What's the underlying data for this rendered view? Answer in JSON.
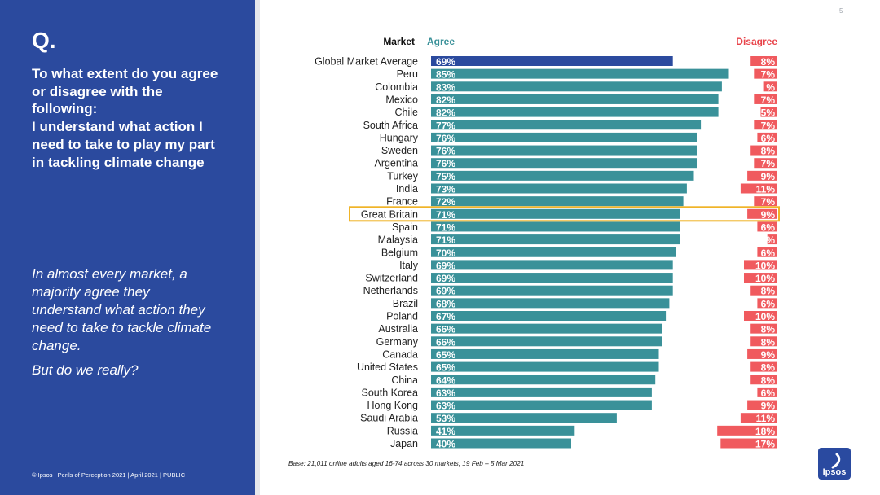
{
  "page": {
    "number": "5",
    "q_mark": "Q.",
    "question_lines": [
      "To what extent do you agree",
      "or disagree with the",
      "following:",
      "I understand what action I",
      "need to take to play my part",
      "in tackling climate change"
    ],
    "insight_lines": [
      "In almost every market, a",
      "majority agree they",
      "understand what action they",
      "need to take to tackle climate",
      "change."
    ],
    "insight_closing": "But do we really?",
    "footer": "© Ipsos | Perils of Perception 2021 | April 2021 | PUBLIC",
    "base_note": "Base: 21,011 online adults aged 16-74 across 30 markets,  19 Feb – 5 Mar 2021",
    "logo_text": "Ipsos"
  },
  "colors": {
    "panel": "#2b4a9e",
    "agree": "#3a9199",
    "agree_highlight": "#2b4a9e",
    "disagree": "#f05a5e",
    "highlight_box": "#f0b428",
    "agree_label": "#3a9199",
    "disagree_label": "#e8434a"
  },
  "chart_data": {
    "type": "bar",
    "orientation": "horizontal",
    "category_header": "Market",
    "categories": [
      "Global Market Average",
      "Peru",
      "Colombia",
      "Mexico",
      "Chile",
      "South Africa",
      "Hungary",
      "Sweden",
      "Argentina",
      "Turkey",
      "India",
      "France",
      "Great Britain",
      "Spain",
      "Malaysia",
      "Belgium",
      "Italy",
      "Switzerland",
      "Netherlands",
      "Brazil",
      "Poland",
      "Australia",
      "Germany",
      "Canada",
      "United States",
      "China",
      "South Korea",
      "Hong Kong",
      "Saudi Arabia",
      "Russia",
      "Japan"
    ],
    "series": [
      {
        "name": "Agree",
        "values": [
          69,
          85,
          83,
          82,
          82,
          77,
          76,
          76,
          76,
          75,
          73,
          72,
          71,
          71,
          71,
          70,
          69,
          69,
          69,
          68,
          67,
          66,
          66,
          65,
          65,
          64,
          63,
          63,
          53,
          41,
          40
        ],
        "labels": [
          "69%",
          "85%",
          "83%",
          "82%",
          "82%",
          "77%",
          "76%",
          "76%",
          "76%",
          "75%",
          "73%",
          "72%",
          "71%",
          "71%",
          "71%",
          "70%",
          "69%",
          "69%",
          "69%",
          "68%",
          "67%",
          "66%",
          "66%",
          "65%",
          "65%",
          "64%",
          "63%",
          "63%",
          "53%",
          "41%",
          "40%"
        ]
      },
      {
        "name": "Disagree",
        "values": [
          8,
          7,
          4,
          7,
          5,
          7,
          6,
          8,
          7,
          9,
          11,
          7,
          9,
          6,
          3,
          6,
          10,
          10,
          8,
          6,
          10,
          8,
          8,
          9,
          8,
          8,
          6,
          9,
          11,
          18,
          17
        ],
        "labels": [
          "8%",
          "7%",
          "%",
          "7%",
          "5%",
          "7%",
          "6%",
          "8%",
          "7%",
          "9%",
          "11%",
          "7%",
          "9%",
          "6%",
          "%",
          "6%",
          "10%",
          "10%",
          "8%",
          "6%",
          "10%",
          "8%",
          "8%",
          "9%",
          "8%",
          "8%",
          "6%",
          "9%",
          "11%",
          "18%",
          "17%"
        ]
      }
    ],
    "highlighted_categories": [
      "Global Market Average"
    ],
    "boxed_category": "Great Britain",
    "xlim": [
      0,
      100
    ]
  }
}
